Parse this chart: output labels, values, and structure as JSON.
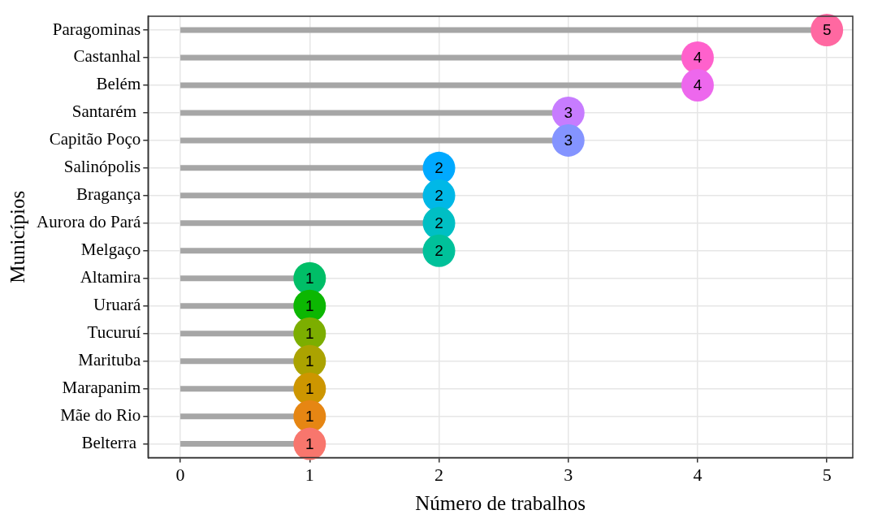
{
  "chart_data": {
    "type": "lollipop",
    "orientation": "horizontal",
    "xlabel": "Número de trabalhos",
    "ylabel": "Municípios",
    "categories": [
      "Paragominas",
      "Castanhal",
      "Belém",
      "Santarém ",
      "Capitão Poço",
      "Salinópolis",
      "Bragança",
      "Aurora do Pará",
      "Melgaço",
      "Altamira",
      "Uruará",
      "Tucuruí",
      "Marituba",
      "Marapanim",
      "Mãe do Rio",
      "Belterra "
    ],
    "values": [
      5,
      4,
      4,
      3,
      3,
      2,
      2,
      2,
      2,
      1,
      1,
      1,
      1,
      1,
      1,
      1
    ],
    "colors": [
      "#ff68a1",
      "#ff61cc",
      "#ed68ed",
      "#c77cff",
      "#8494ff",
      "#00a9ff",
      "#00b8e7",
      "#00bfc4",
      "#00c19a",
      "#00be67",
      "#0cb702",
      "#7cae00",
      "#aba300",
      "#cd9600",
      "#e68613",
      "#f8766d"
    ],
    "color": "#a6a6a6",
    "xlim": [
      -0.25,
      5.2
    ],
    "xticks": [
      0,
      1,
      2,
      3,
      4,
      5
    ],
    "grid": true,
    "data_labels": true,
    "marker": "circle",
    "legend": false
  }
}
